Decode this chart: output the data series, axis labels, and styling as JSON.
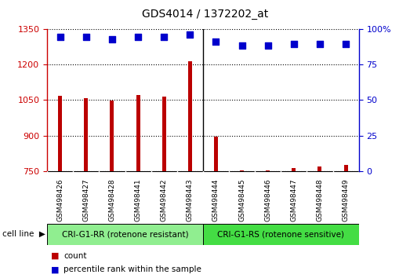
{
  "title": "GDS4014 / 1372202_at",
  "categories": [
    "GSM498426",
    "GSM498427",
    "GSM498428",
    "GSM498441",
    "GSM498442",
    "GSM498443",
    "GSM498444",
    "GSM498445",
    "GSM498446",
    "GSM498447",
    "GSM498448",
    "GSM498449"
  ],
  "counts": [
    1068,
    1057,
    1047,
    1073,
    1065,
    1215,
    895,
    752,
    752,
    762,
    770,
    775
  ],
  "percentile_ranks_left": [
    1316,
    1316,
    1308,
    1316,
    1316,
    1328,
    1298,
    1280,
    1280,
    1286,
    1286,
    1286
  ],
  "ylim_left": [
    750,
    1350
  ],
  "ylim_right": [
    0,
    100
  ],
  "yticks_left": [
    750,
    900,
    1050,
    1200,
    1350
  ],
  "yticks_right": [
    0,
    25,
    50,
    75,
    100
  ],
  "bar_color": "#bb0000",
  "dot_color": "#0000cc",
  "group1_label": "CRI-G1-RR (rotenone resistant)",
  "group2_label": "CRI-G1-RS (rotenone sensitive)",
  "group1_color": "#90EE90",
  "group2_color": "#44DD44",
  "cell_line_label": "cell line",
  "legend_count_label": "count",
  "legend_pct_label": "percentile rank within the sample",
  "bar_width": 0.15,
  "dot_size": 30
}
